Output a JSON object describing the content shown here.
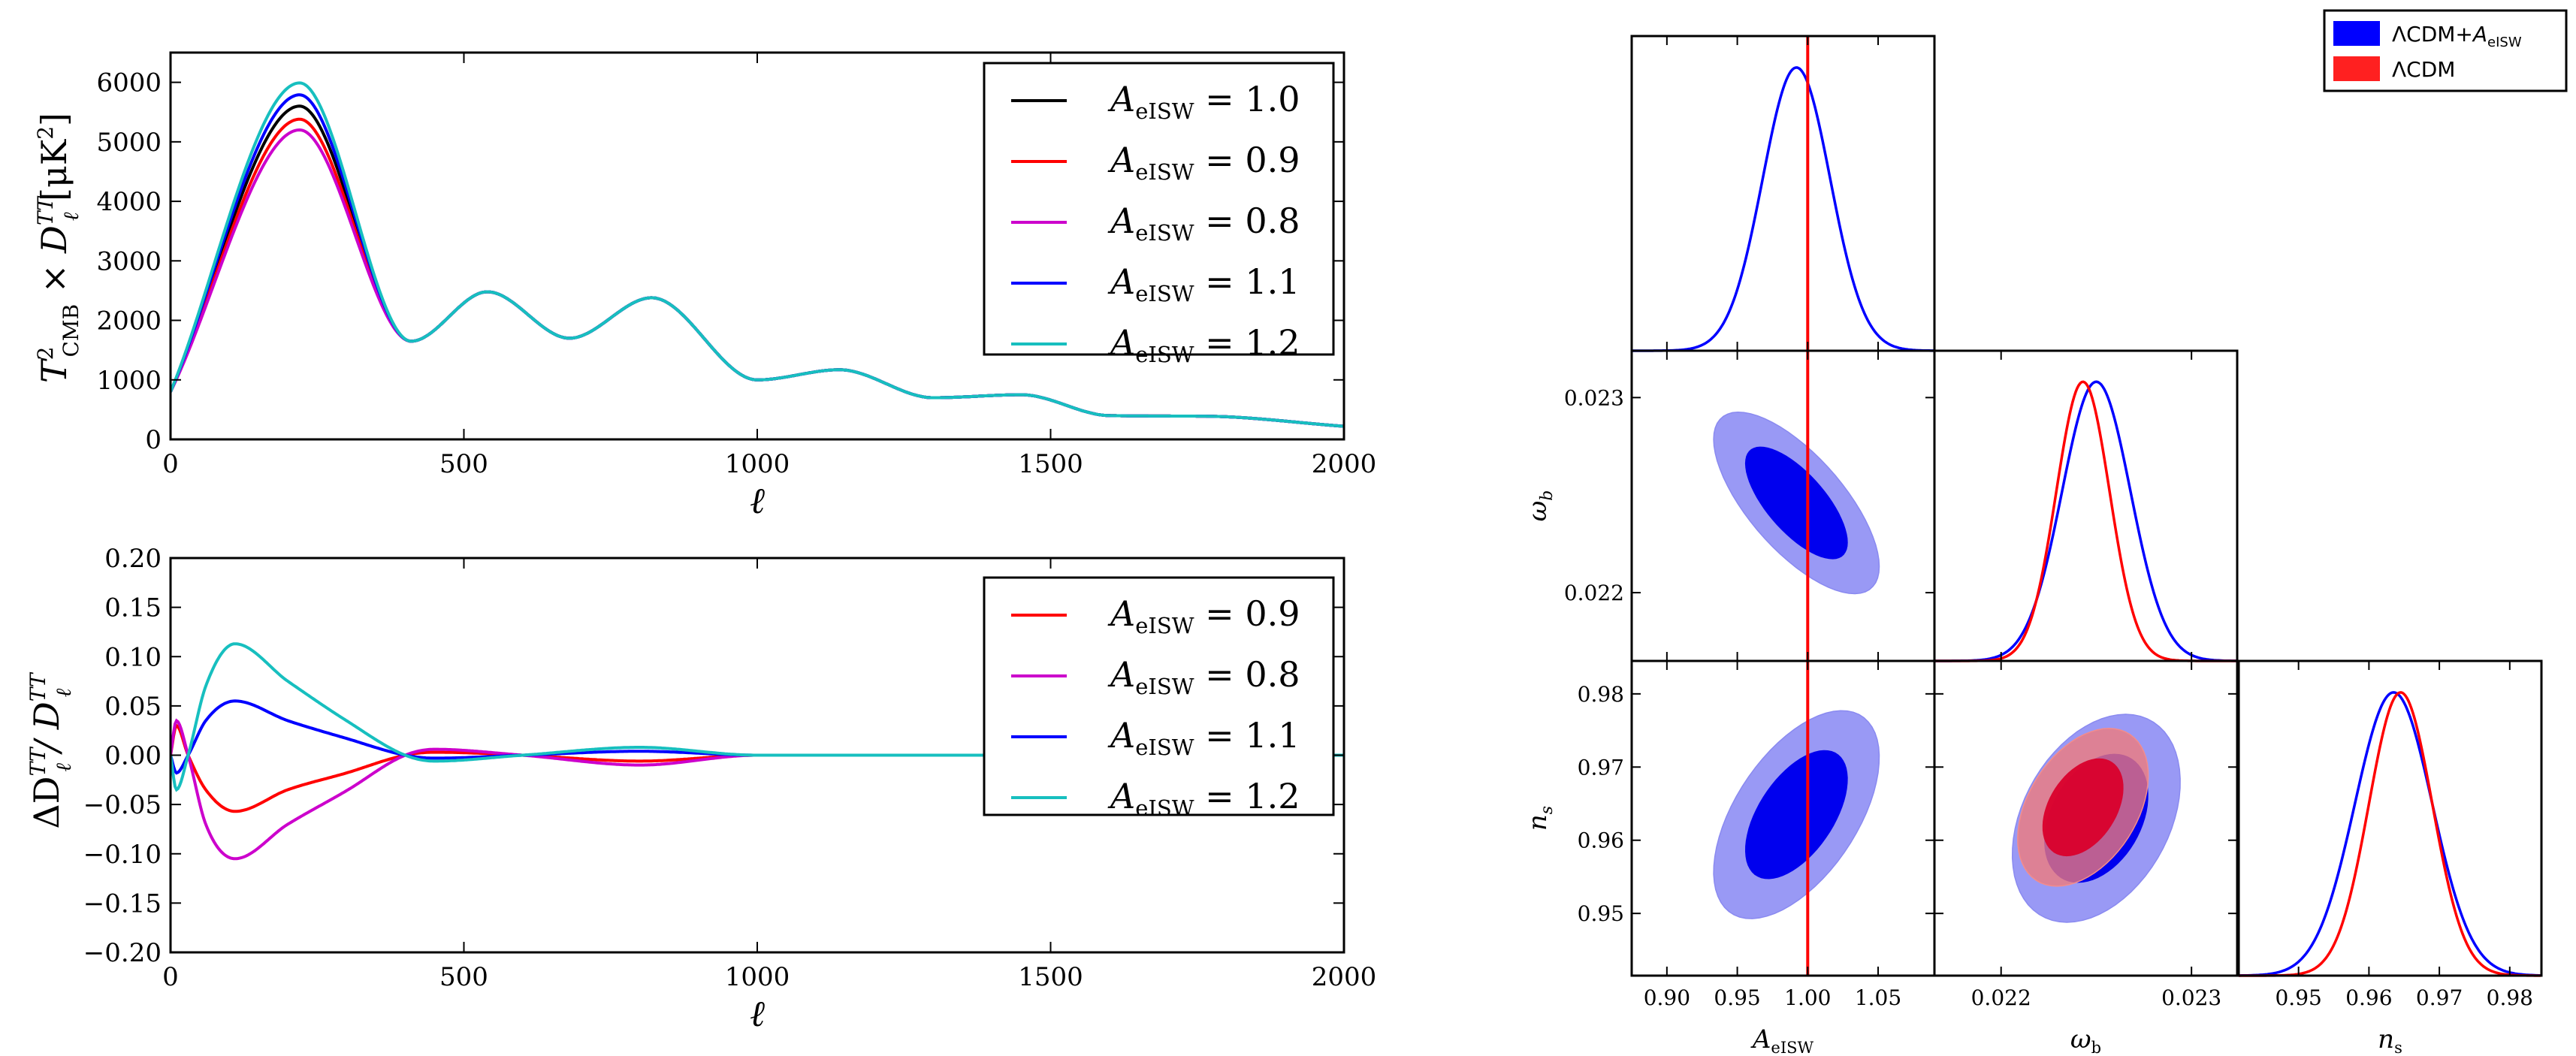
{
  "chart_data": [
    {
      "type": "line",
      "title": "",
      "xlabel": "ℓ",
      "ylabel": "T²_CMB × D_ℓ^TT [μK²]",
      "xlim": [
        0,
        2000
      ],
      "ylim": [
        0,
        6500
      ],
      "xticks": [
        "0",
        "500",
        "1000",
        "1500",
        "2000"
      ],
      "yticks": [
        "0",
        "1000",
        "2000",
        "3000",
        "4000",
        "5000",
        "6000"
      ],
      "legend": "top-right",
      "peaks": {
        "x": [
          220,
          540,
          820,
          1140,
          1450,
          1760
        ],
        "note": "first-peak heights per series below; later peaks nearly identical across series"
      },
      "series": [
        {
          "name": "A_eISW = 1.0",
          "color": "#000000",
          "first_peak": 5600,
          "x": [
            0,
            220,
            410,
            540,
            680,
            820,
            1000,
            1140,
            1300,
            1450,
            1600,
            1760,
            2000
          ],
          "y": [
            800,
            5600,
            1650,
            2480,
            1700,
            2380,
            1000,
            1170,
            700,
            750,
            400,
            390,
            220
          ]
        },
        {
          "name": "A_eISW = 0.9",
          "color": "#ff0000",
          "first_peak": 5380,
          "x": [
            0,
            220,
            410,
            540,
            680,
            820,
            1000,
            1140,
            1300,
            1450,
            1600,
            1760,
            2000
          ],
          "y": [
            800,
            5380,
            1650,
            2480,
            1700,
            2380,
            1000,
            1170,
            700,
            750,
            400,
            390,
            220
          ]
        },
        {
          "name": "A_eISW = 0.8",
          "color": "#cc00cc",
          "first_peak": 5200,
          "x": [
            0,
            220,
            410,
            540,
            680,
            820,
            1000,
            1140,
            1300,
            1450,
            1600,
            1760,
            2000
          ],
          "y": [
            800,
            5200,
            1650,
            2480,
            1700,
            2380,
            1000,
            1170,
            700,
            750,
            400,
            390,
            220
          ]
        },
        {
          "name": "A_eISW = 1.1",
          "color": "#0000ff",
          "first_peak": 5790,
          "x": [
            0,
            220,
            410,
            540,
            680,
            820,
            1000,
            1140,
            1300,
            1450,
            1600,
            1760,
            2000
          ],
          "y": [
            800,
            5790,
            1650,
            2480,
            1700,
            2380,
            1000,
            1170,
            700,
            750,
            400,
            390,
            220
          ]
        },
        {
          "name": "A_eISW = 1.2",
          "color": "#17bfbf",
          "first_peak": 5990,
          "x": [
            0,
            220,
            410,
            540,
            680,
            820,
            1000,
            1140,
            1300,
            1450,
            1600,
            1760,
            2000
          ],
          "y": [
            800,
            5990,
            1650,
            2480,
            1700,
            2380,
            1000,
            1170,
            700,
            750,
            400,
            390,
            220
          ]
        }
      ]
    },
    {
      "type": "line",
      "title": "",
      "xlabel": "ℓ",
      "ylabel": "ΔD_ℓ^TT / D_ℓ^TT",
      "xlim": [
        0,
        2000
      ],
      "ylim": [
        -0.2,
        0.2
      ],
      "xticks": [
        "0",
        "500",
        "1000",
        "1500",
        "2000"
      ],
      "yticks": [
        "0.20",
        "0.15",
        "0.10",
        "0.05",
        "0.00",
        "−0.05",
        "−0.10",
        "−0.15",
        "−0.20"
      ],
      "legend": "top-right",
      "series": [
        {
          "name": "A_eISW = 0.9",
          "color": "#ff0000",
          "x": [
            0,
            10,
            30,
            60,
            110,
            200,
            300,
            400,
            450,
            600,
            800,
            1000,
            2000
          ],
          "y": [
            0.0,
            0.03,
            0.0,
            -0.035,
            -0.057,
            -0.035,
            -0.018,
            0.0,
            0.003,
            0.0,
            -0.006,
            0.0,
            0.0
          ]
        },
        {
          "name": "A_eISW = 0.8",
          "color": "#cc00cc",
          "x": [
            0,
            10,
            30,
            60,
            110,
            200,
            300,
            400,
            450,
            600,
            800,
            1000,
            2000
          ],
          "y": [
            0.0,
            0.035,
            0.0,
            -0.07,
            -0.105,
            -0.07,
            -0.036,
            0.0,
            0.006,
            0.0,
            -0.01,
            0.0,
            0.0
          ]
        },
        {
          "name": "A_eISW = 1.1",
          "color": "#0000ff",
          "x": [
            0,
            10,
            30,
            60,
            110,
            200,
            300,
            400,
            450,
            600,
            800,
            1000,
            2000
          ],
          "y": [
            0.0,
            -0.018,
            0.0,
            0.035,
            0.055,
            0.035,
            0.017,
            0.0,
            -0.003,
            0.0,
            0.004,
            0.0,
            0.0
          ]
        },
        {
          "name": "A_eISW = 1.2",
          "color": "#17bfbf",
          "x": [
            0,
            10,
            30,
            60,
            110,
            200,
            300,
            400,
            450,
            600,
            800,
            1000,
            2000
          ],
          "y": [
            0.0,
            -0.035,
            0.0,
            0.07,
            0.113,
            0.075,
            0.035,
            0.0,
            -0.006,
            0.0,
            0.008,
            0.0,
            0.0
          ]
        }
      ]
    },
    {
      "type": "triangle",
      "title": "",
      "parameters": [
        {
          "name": "A_eISW",
          "label": "A_eISW",
          "range": [
            0.875,
            1.09
          ],
          "ticks": [
            "0.90",
            "0.95",
            "1.00",
            "1.05"
          ]
        },
        {
          "name": "omega_b",
          "label": "ω_b",
          "range": [
            0.02165,
            0.02324
          ],
          "ticks": [
            "0.022",
            "0.023"
          ]
        },
        {
          "name": "n_s",
          "label": "n_s",
          "range": [
            0.9415,
            0.9845
          ],
          "ticks": [
            "0.95",
            "0.96",
            "0.97",
            "0.98"
          ]
        }
      ],
      "reference_line": {
        "parameter": "A_eISW",
        "value": 1.0,
        "color": "#ff0000"
      },
      "legend": "top-right",
      "legend_entries": [
        {
          "label": "ΛCDM+",
          "label_sub": "A_eISW",
          "color": "#0000ff"
        },
        {
          "label": "ΛCDM",
          "color": "#ff2020"
        }
      ],
      "marginals": [
        {
          "parameter": "A_eISW",
          "series": [
            {
              "name": "ΛCDM+A_eISW",
              "color": "#0000ff",
              "mean": 0.992,
              "sigma": 0.024
            }
          ]
        },
        {
          "parameter": "omega_b",
          "series": [
            {
              "name": "ΛCDM+A_eISW",
              "color": "#0000ff",
              "mean": 0.0225,
              "sigma": 0.00018
            },
            {
              "name": "ΛCDM",
              "color": "#ff0000",
              "mean": 0.02243,
              "sigma": 0.00014
            }
          ]
        },
        {
          "parameter": "n_s",
          "series": [
            {
              "name": "ΛCDM+A_eISW",
              "color": "#0000ff",
              "mean": 0.9635,
              "sigma": 0.0055
            },
            {
              "name": "ΛCDM",
              "color": "#ff0000",
              "mean": 0.9645,
              "sigma": 0.0045
            }
          ]
        }
      ],
      "contours": [
        {
          "x": "A_eISW",
          "y": "omega_b",
          "series": [
            {
              "name": "ΛCDM+A_eISW",
              "color": "#0000ff",
              "center": [
                0.992,
                0.02246
              ],
              "sigma_x": 0.024,
              "sigma_y": 0.00019,
              "rho": -0.7
            }
          ]
        },
        {
          "x": "A_eISW",
          "y": "n_s",
          "series": [
            {
              "name": "ΛCDM+A_eISW",
              "color": "#0000ff",
              "center": [
                0.992,
                0.9635
              ],
              "sigma_x": 0.024,
              "sigma_y": 0.0058,
              "rho": 0.55
            }
          ]
        },
        {
          "x": "omega_b",
          "y": "n_s",
          "series": [
            {
              "name": "ΛCDM+A_eISW",
              "color": "#0000ff",
              "center": [
                0.0225,
                0.963
              ],
              "sigma_x": 0.00018,
              "sigma_y": 0.0058,
              "rho": 0.35
            },
            {
              "name": "ΛCDM",
              "color": "#ff0000",
              "center": [
                0.02243,
                0.9645
              ],
              "sigma_x": 0.00014,
              "sigma_y": 0.0044,
              "rho": 0.4
            }
          ]
        }
      ]
    }
  ]
}
